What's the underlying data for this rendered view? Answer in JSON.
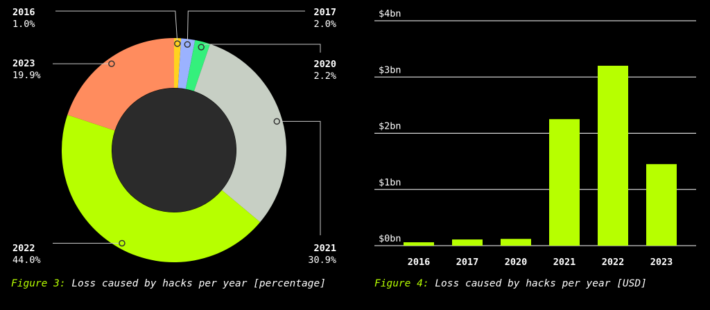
{
  "colors": {
    "background": "#000000",
    "accent": "#b7ff00",
    "text": "#ffffff",
    "leader": "#cccccc",
    "grid": "#ffffff",
    "donut_hole": "#2b2b2b"
  },
  "captions": {
    "left_fig": "Figure 3:",
    "left_text": "Loss caused by hacks per year [percentage]",
    "right_fig": "Figure 4:",
    "right_text": "Loss caused by hacks per year [USD]"
  },
  "chart_data": [
    {
      "type": "pie",
      "donut": true,
      "title": "",
      "slices": [
        {
          "label": "2016",
          "value": 1.0,
          "value_label": "1.0%",
          "color": "#ffd21f"
        },
        {
          "label": "2017",
          "value": 2.0,
          "value_label": "2.0%",
          "color": "#9bb2ff"
        },
        {
          "label": "2020",
          "value": 2.2,
          "value_label": "2.2%",
          "color": "#34f07c"
        },
        {
          "label": "2021",
          "value": 30.9,
          "value_label": "30.9%",
          "color": "#c7cfc4"
        },
        {
          "label": "2022",
          "value": 44.0,
          "value_label": "44.0%",
          "color": "#b7ff00"
        },
        {
          "label": "2023",
          "value": 19.9,
          "value_label": "19.9%",
          "color": "#ff8c5e"
        }
      ]
    },
    {
      "type": "bar",
      "title": "",
      "xlabel": "",
      "ylabel": "",
      "categories": [
        "2016",
        "2017",
        "2020",
        "2021",
        "2022",
        "2023"
      ],
      "values": [
        0.06,
        0.11,
        0.12,
        2.25,
        3.2,
        1.45
      ],
      "ylim": [
        0,
        4
      ],
      "y_ticks": [
        {
          "value": 0,
          "label": "$0bn"
        },
        {
          "value": 1,
          "label": "$1bn"
        },
        {
          "value": 2,
          "label": "$2bn"
        },
        {
          "value": 3,
          "label": "$3bn"
        },
        {
          "value": 4,
          "label": "$4bn"
        }
      ],
      "grid": true,
      "color": "#b7ff00"
    }
  ]
}
